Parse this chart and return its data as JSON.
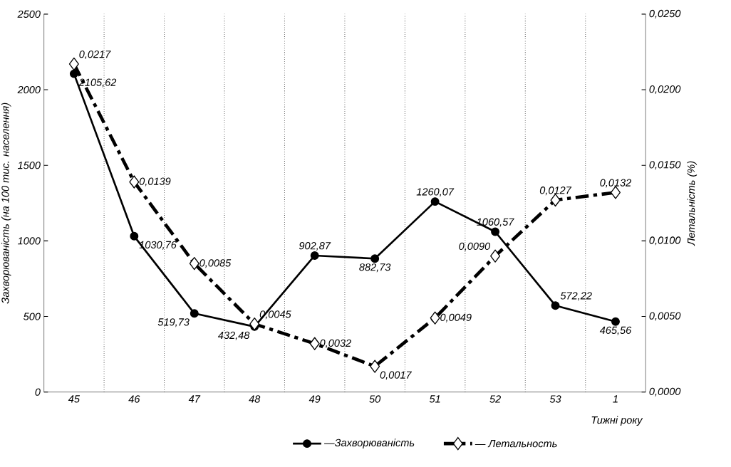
{
  "chart_data": {
    "type": "line",
    "categories": [
      "45",
      "46",
      "47",
      "48",
      "49",
      "50",
      "51",
      "52",
      "53",
      "1"
    ],
    "xlabel": "Тижні року",
    "ylabel": "Захворюваність (на 100 тис. населення)",
    "y2label": "Летальність (%)",
    "ylim": [
      0,
      2500
    ],
    "yticks": [
      0,
      500,
      1000,
      1500,
      2000,
      2500
    ],
    "y2lim": [
      0,
      0.025
    ],
    "y2ticks": [
      {
        "value": 0,
        "label": "0,0000"
      },
      {
        "value": 0.005,
        "label": "0,0050"
      },
      {
        "value": 0.01,
        "label": "0,0100"
      },
      {
        "value": 0.015,
        "label": "0,0150"
      },
      {
        "value": 0.02,
        "label": "0,0200"
      },
      {
        "value": 0.025,
        "label": "0,0250"
      }
    ],
    "grid": "x",
    "legend": "bottom",
    "series": [
      {
        "name": "—Захворюваність",
        "color": "#000000",
        "marker": "circle",
        "line_style": "solid",
        "values": [
          2105.62,
          1030.76,
          519.73,
          432.48,
          902.87,
          882.73,
          1260.07,
          1060.57,
          572.22,
          465.56
        ],
        "value_labels": [
          "2105,62",
          "1030,76",
          "519,73",
          "432,48",
          "902,87",
          "882,73",
          "1260,07",
          "1060,57",
          "572,22",
          "465,56"
        ]
      },
      {
        "name": "— Летальность",
        "color": "#000000",
        "marker": "diamond",
        "line_style": "dashed",
        "axis": "y2",
        "values": [
          0.0217,
          0.0139,
          0.0085,
          0.0045,
          0.0032,
          0.0017,
          0.0049,
          0.009,
          0.0127,
          0.0132
        ],
        "value_labels": [
          "0,0217",
          "0,0139",
          "0,0085",
          "0,0045",
          "0,0032",
          "0,0017",
          "0,0049",
          "0,0090",
          "0,0127",
          "0,0132"
        ]
      }
    ]
  }
}
